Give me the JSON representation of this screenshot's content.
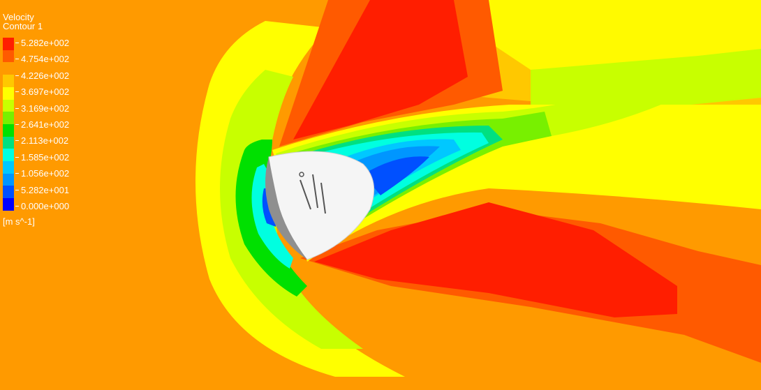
{
  "legend": {
    "variable": "Velocity",
    "contour": "Contour 1",
    "units": "[m s^-1]",
    "tick_labels": [
      "5.282e+002",
      "4.754e+002",
      "4.226e+002",
      "3.697e+002",
      "3.169e+002",
      "2.641e+002",
      "2.113e+002",
      "1.585e+002",
      "1.056e+002",
      "5.282e+001",
      "0.000e+000"
    ],
    "colors": [
      "#ff1e00",
      "#ff5a00",
      "#ff9a00",
      "#ffc800",
      "#ffff00",
      "#c8ff00",
      "#78f000",
      "#00e000",
      "#00e080",
      "#00ffe0",
      "#00c8ff",
      "#0096ff",
      "#0050ff",
      "#0000ff"
    ]
  },
  "field": {
    "freestream_color": "#ff9a00",
    "body_color": "#f5f5f5",
    "body_shadow_color": "#8f8f8f"
  }
}
